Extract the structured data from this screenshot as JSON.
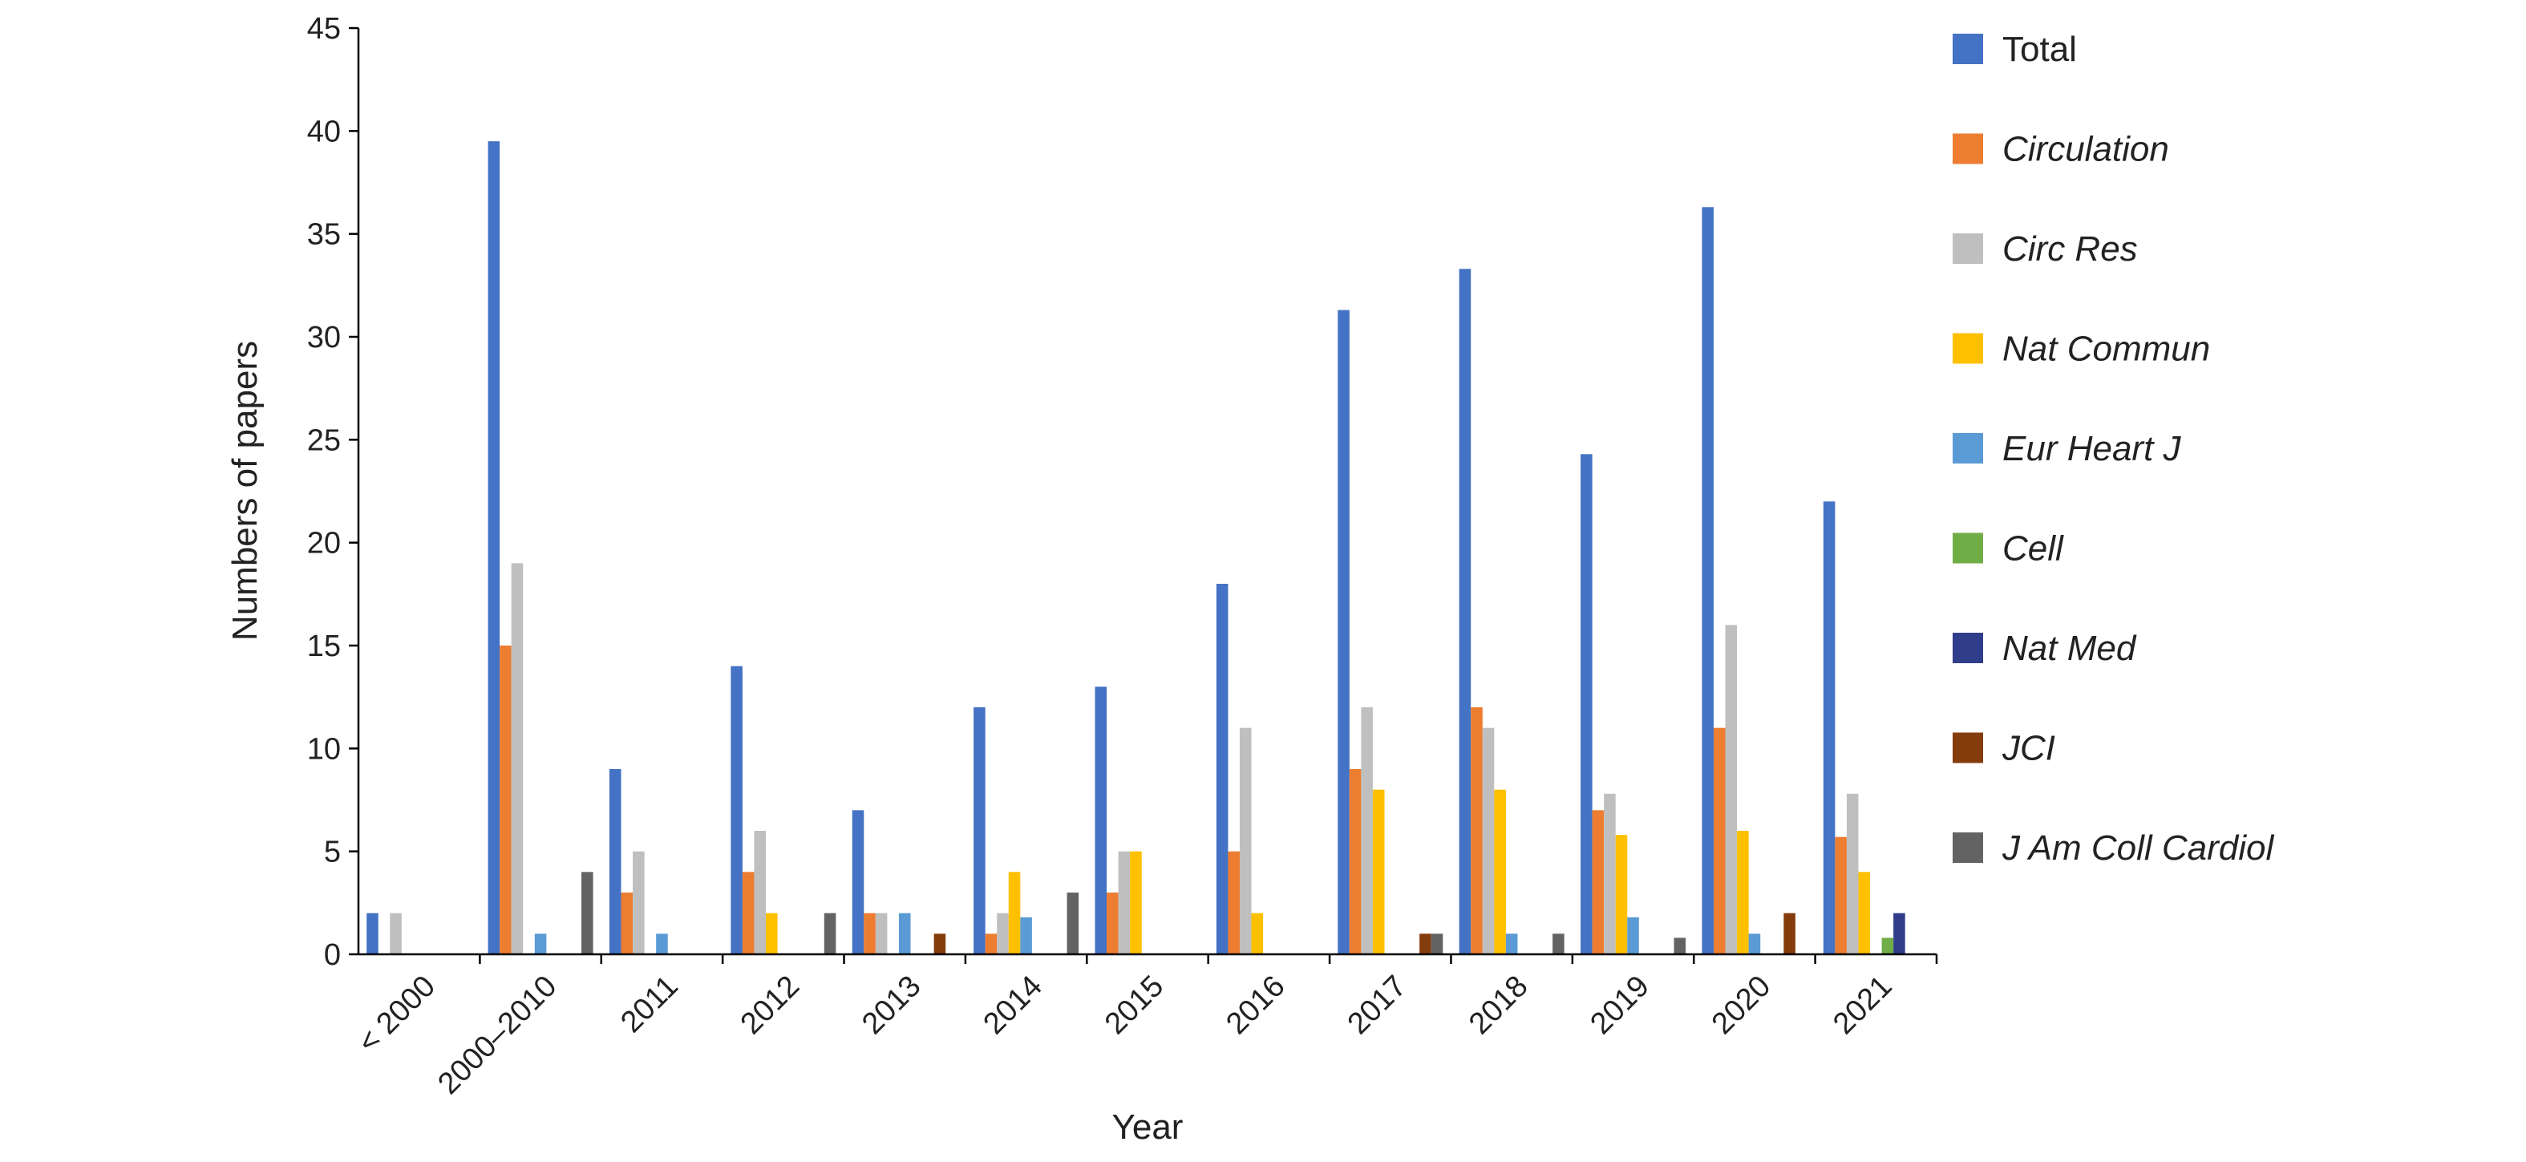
{
  "chart_data": {
    "type": "bar",
    "title": "",
    "xlabel": "Year",
    "ylabel": "Numbers of papers",
    "ylim": [
      0,
      45
    ],
    "yticks": [
      0,
      5,
      10,
      15,
      20,
      25,
      30,
      35,
      40,
      45
    ],
    "grid": false,
    "legend_position": "right",
    "categories": [
      "< 2000",
      "2000–2010",
      "2011",
      "2012",
      "2013",
      "2014",
      "2015",
      "2016",
      "2017",
      "2018",
      "2019",
      "2020",
      "2021"
    ],
    "series": [
      {
        "name": "Total",
        "color": "#4472c4",
        "italic": false,
        "values": [
          2,
          39.5,
          9,
          14,
          7,
          12,
          13,
          18,
          31.3,
          33.3,
          24.3,
          36.3,
          22
        ]
      },
      {
        "name": "Circulation",
        "color": "#ed7d31",
        "italic": true,
        "values": [
          0,
          15,
          3,
          4,
          2,
          1,
          3,
          5,
          9,
          12,
          7,
          11,
          5.7
        ]
      },
      {
        "name": "Circ Res",
        "color": "#bfbfbf",
        "italic": true,
        "values": [
          2,
          19,
          5,
          6,
          2,
          2,
          5,
          11,
          12,
          11,
          7.8,
          16,
          7.8
        ]
      },
      {
        "name": "Nat Commun",
        "color": "#ffc000",
        "italic": true,
        "values": [
          0,
          0,
          0,
          2,
          0,
          4,
          5,
          2,
          8,
          8,
          5.8,
          6,
          4
        ]
      },
      {
        "name": "Eur Heart J",
        "color": "#5b9bd5",
        "italic": true,
        "values": [
          0,
          1,
          1,
          0,
          2,
          1.8,
          0,
          0,
          0,
          1,
          1.8,
          1,
          0
        ]
      },
      {
        "name": "Cell",
        "color": "#70ad47",
        "italic": true,
        "values": [
          0,
          0,
          0,
          0,
          0,
          0,
          0,
          0,
          0,
          0,
          0,
          0,
          0.8
        ]
      },
      {
        "name": "Nat Med",
        "color": "#2f3d8a",
        "italic": true,
        "values": [
          0,
          0,
          0,
          0,
          0,
          0,
          0,
          0,
          0,
          0,
          0,
          0,
          2
        ]
      },
      {
        "name": "JCI",
        "color": "#843c0c",
        "italic": true,
        "values": [
          0,
          0,
          0,
          0,
          1,
          0,
          0,
          0,
          1,
          0,
          0,
          2,
          0
        ]
      },
      {
        "name": "J Am Coll Cardiol",
        "color": "#636363",
        "italic": true,
        "values": [
          0,
          4,
          0,
          2,
          0,
          3,
          0,
          0,
          1,
          1,
          0.8,
          0,
          0
        ]
      }
    ]
  }
}
